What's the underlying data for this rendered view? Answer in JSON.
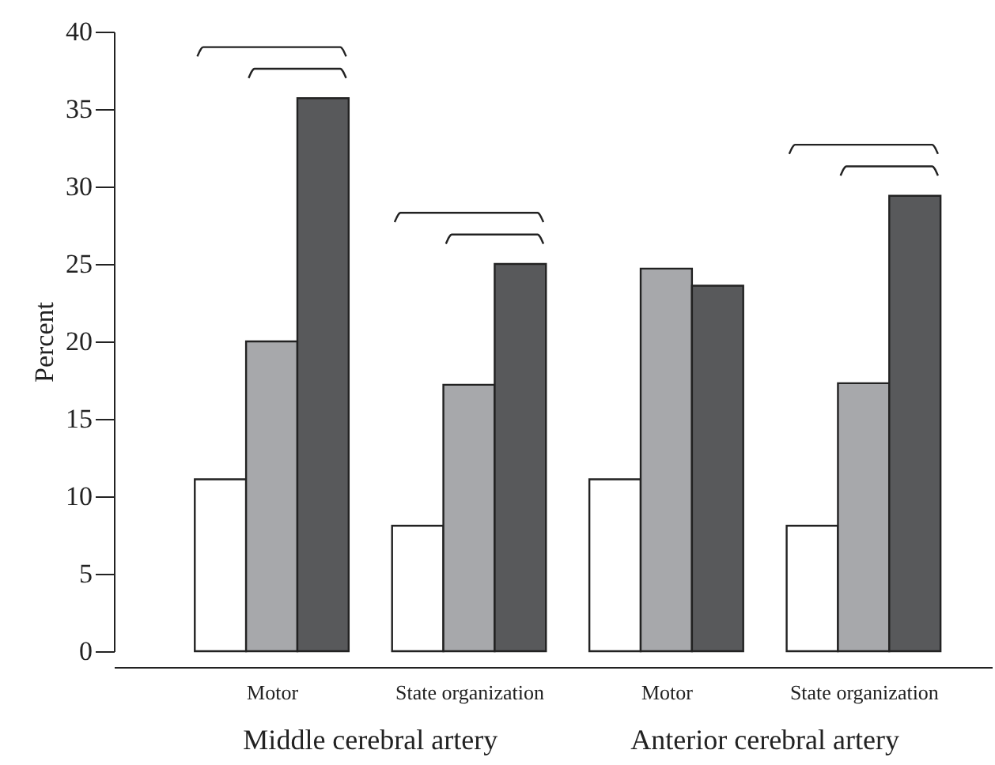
{
  "chart_data": {
    "type": "bar",
    "ylabel": "Percent",
    "categories": [
      "Motor",
      "State organization",
      "Motor",
      "State organization"
    ],
    "series": [
      {
        "color": "#ffffff",
        "values": [
          11.1,
          8.1,
          11.1,
          8.1
        ]
      },
      {
        "color": "#a7a8ab",
        "values": [
          20.0,
          17.2,
          24.7,
          17.3
        ]
      },
      {
        "color": "#58595b",
        "values": [
          35.7,
          25.0,
          23.6,
          29.4
        ]
      }
    ],
    "ylim": [
      0,
      40
    ],
    "yticks": [
      0,
      5,
      10,
      15,
      20,
      25,
      30,
      35,
      40
    ],
    "annotations": [
      "Middle cerebral artery",
      "Anterior cerebral artery"
    ],
    "grid": false
  }
}
